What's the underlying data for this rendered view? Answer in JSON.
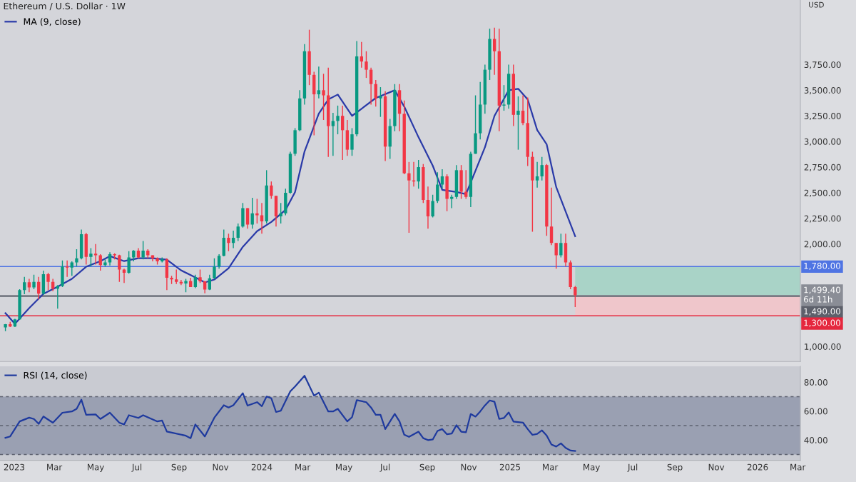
{
  "chart_data": [
    {
      "type": "candlestick",
      "title": "Ethereum / U.S. Dollar · 1W",
      "annotations": [
        "USD"
      ],
      "legend": "top left",
      "tick_labels": "y",
      "x": [
        "2022-12-19",
        "2022-12-26",
        "2023-01-02",
        "2023-01-09",
        "2023-01-16",
        "2023-01-23",
        "2023-01-30",
        "2023-02-06",
        "2023-02-13",
        "2023-02-20",
        "2023-02-27",
        "2023-03-06",
        "2023-03-13",
        "2023-03-20",
        "2023-03-27",
        "2023-04-03",
        "2023-04-10",
        "2023-04-17",
        "2023-04-24",
        "2023-05-01",
        "2023-05-08",
        "2023-05-15",
        "2023-05-22",
        "2023-05-29",
        "2023-06-05",
        "2023-06-12",
        "2023-06-19",
        "2023-06-26",
        "2023-07-03",
        "2023-07-10",
        "2023-07-17",
        "2023-07-24",
        "2023-07-31",
        "2023-08-07",
        "2023-08-14",
        "2023-08-21",
        "2023-08-28",
        "2023-09-04",
        "2023-09-11",
        "2023-09-18",
        "2023-09-25",
        "2023-10-02",
        "2023-10-09",
        "2023-10-16",
        "2023-10-23",
        "2023-10-30",
        "2023-11-06",
        "2023-11-13",
        "2023-11-20",
        "2023-11-27",
        "2023-12-04",
        "2023-12-11",
        "2023-12-18",
        "2023-12-25",
        "2024-01-01",
        "2024-01-08",
        "2024-01-15",
        "2024-01-22",
        "2024-01-29",
        "2024-02-05",
        "2024-02-12",
        "2024-02-19",
        "2024-02-26",
        "2024-03-04",
        "2024-03-11",
        "2024-03-18",
        "2024-03-25",
        "2024-04-01",
        "2024-04-08",
        "2024-04-15",
        "2024-04-22",
        "2024-04-29",
        "2024-05-06",
        "2024-05-13",
        "2024-05-20",
        "2024-05-27",
        "2024-06-03",
        "2024-06-10",
        "2024-06-17",
        "2024-06-24",
        "2024-07-01",
        "2024-07-08",
        "2024-07-15",
        "2024-07-22",
        "2024-07-29",
        "2024-08-05",
        "2024-08-12",
        "2024-08-19",
        "2024-08-26",
        "2024-09-02",
        "2024-09-09",
        "2024-09-16",
        "2024-09-23",
        "2024-09-30",
        "2024-10-07",
        "2024-10-14",
        "2024-10-21",
        "2024-10-28",
        "2024-11-04",
        "2024-11-11",
        "2024-11-18",
        "2024-11-25",
        "2024-12-02",
        "2024-12-09",
        "2024-12-16",
        "2024-12-23",
        "2024-12-30",
        "2025-01-06",
        "2025-01-13",
        "2025-01-20",
        "2025-01-27",
        "2025-02-03",
        "2025-02-10",
        "2025-02-17",
        "2025-02-24",
        "2025-03-03",
        "2025-03-10",
        "2025-03-17",
        "2025-03-24",
        "2025-03-31",
        "2025-04-07"
      ],
      "ohlc": [
        [
          1187,
          1220,
          1150,
          1218
        ],
        [
          1218,
          1240,
          1190,
          1196
        ],
        [
          1196,
          1270,
          1190,
          1265
        ],
        [
          1265,
          1560,
          1260,
          1550
        ],
        [
          1550,
          1680,
          1510,
          1627
        ],
        [
          1627,
          1660,
          1530,
          1577
        ],
        [
          1577,
          1700,
          1560,
          1630
        ],
        [
          1630,
          1680,
          1460,
          1515
        ],
        [
          1515,
          1740,
          1505,
          1705
        ],
        [
          1705,
          1720,
          1550,
          1630
        ],
        [
          1630,
          1660,
          1540,
          1565
        ],
        [
          1565,
          1600,
          1370,
          1590
        ],
        [
          1590,
          1840,
          1580,
          1780
        ],
        [
          1780,
          1840,
          1680,
          1770
        ],
        [
          1770,
          1830,
          1690,
          1820
        ],
        [
          1820,
          1950,
          1780,
          1860
        ],
        [
          1860,
          2140,
          1850,
          2095
        ],
        [
          2095,
          2110,
          1800,
          1875
        ],
        [
          1875,
          1960,
          1780,
          1905
        ],
        [
          1905,
          2000,
          1800,
          1890
        ],
        [
          1890,
          1900,
          1740,
          1795
        ],
        [
          1795,
          1850,
          1780,
          1820
        ],
        [
          1820,
          1920,
          1790,
          1900
        ],
        [
          1900,
          1910,
          1850,
          1890
        ],
        [
          1890,
          1895,
          1630,
          1750
        ],
        [
          1750,
          1760,
          1620,
          1720
        ],
        [
          1720,
          1930,
          1710,
          1870
        ],
        [
          1870,
          1940,
          1830,
          1935
        ],
        [
          1935,
          1960,
          1860,
          1870
        ],
        [
          1870,
          2030,
          1850,
          1935
        ],
        [
          1935,
          1950,
          1860,
          1890
        ],
        [
          1890,
          1890,
          1830,
          1860
        ],
        [
          1860,
          1870,
          1800,
          1830
        ],
        [
          1830,
          1870,
          1820,
          1850
        ],
        [
          1850,
          1860,
          1550,
          1670
        ],
        [
          1670,
          1690,
          1610,
          1655
        ],
        [
          1655,
          1750,
          1610,
          1630
        ],
        [
          1630,
          1650,
          1600,
          1615
        ],
        [
          1615,
          1660,
          1530,
          1640
        ],
        [
          1640,
          1670,
          1580,
          1580
        ],
        [
          1580,
          1700,
          1570,
          1675
        ],
        [
          1675,
          1750,
          1620,
          1635
        ],
        [
          1635,
          1640,
          1520,
          1555
        ],
        [
          1555,
          1700,
          1550,
          1665
        ],
        [
          1665,
          1860,
          1660,
          1780
        ],
        [
          1780,
          1900,
          1760,
          1885
        ],
        [
          1885,
          2140,
          1880,
          2060
        ],
        [
          2060,
          2100,
          1930,
          2010
        ],
        [
          2010,
          2130,
          1960,
          2060
        ],
        [
          2060,
          2200,
          2030,
          2170
        ],
        [
          2170,
          2400,
          2160,
          2350
        ],
        [
          2350,
          2350,
          2150,
          2190
        ],
        [
          2190,
          2450,
          2150,
          2300
        ],
        [
          2300,
          2440,
          2200,
          2280
        ],
        [
          2280,
          2400,
          2100,
          2220
        ],
        [
          2220,
          2720,
          2200,
          2570
        ],
        [
          2570,
          2610,
          2440,
          2470
        ],
        [
          2470,
          2470,
          2170,
          2270
        ],
        [
          2270,
          2400,
          2200,
          2300
        ],
        [
          2300,
          2540,
          2280,
          2500
        ],
        [
          2500,
          2900,
          2490,
          2880
        ],
        [
          2880,
          3130,
          2860,
          3110
        ],
        [
          3110,
          3500,
          3100,
          3420
        ],
        [
          3420,
          3950,
          3360,
          3880
        ],
        [
          3880,
          4090,
          3550,
          3650
        ],
        [
          3650,
          3680,
          3060,
          3460
        ],
        [
          3460,
          3730,
          3420,
          3500
        ],
        [
          3500,
          3660,
          3210,
          3450
        ],
        [
          3450,
          3720,
          2850,
          3150
        ],
        [
          3150,
          3280,
          2860,
          3200
        ],
        [
          3200,
          3350,
          3070,
          3250
        ],
        [
          3250,
          3350,
          2820,
          3110
        ],
        [
          3110,
          3210,
          2860,
          2920
        ],
        [
          2920,
          3130,
          2860,
          3070
        ],
        [
          3070,
          3980,
          3050,
          3830
        ],
        [
          3830,
          3970,
          3720,
          3780
        ],
        [
          3780,
          3880,
          3620,
          3700
        ],
        [
          3700,
          3720,
          3360,
          3560
        ],
        [
          3560,
          3600,
          3340,
          3420
        ],
        [
          3420,
          3530,
          3240,
          3440
        ],
        [
          3440,
          3490,
          2810,
          2950
        ],
        [
          2950,
          3220,
          2830,
          3150
        ],
        [
          3150,
          3560,
          3100,
          3500
        ],
        [
          3500,
          3560,
          3100,
          3270
        ],
        [
          3270,
          3400,
          2680,
          2690
        ],
        [
          2690,
          2800,
          2110,
          2620
        ],
        [
          2620,
          2800,
          2560,
          2610
        ],
        [
          2610,
          2820,
          2540,
          2750
        ],
        [
          2750,
          2780,
          2400,
          2430
        ],
        [
          2430,
          2560,
          2150,
          2270
        ],
        [
          2270,
          2480,
          2260,
          2420
        ],
        [
          2420,
          2700,
          2400,
          2580
        ],
        [
          2580,
          2730,
          2540,
          2660
        ],
        [
          2660,
          2680,
          2320,
          2440
        ],
        [
          2440,
          2480,
          2350,
          2460
        ],
        [
          2460,
          2770,
          2440,
          2720
        ],
        [
          2720,
          2770,
          2440,
          2510
        ],
        [
          2510,
          2720,
          2440,
          2460
        ],
        [
          2460,
          2900,
          2360,
          2880
        ],
        [
          2880,
          3450,
          2880,
          3080
        ],
        [
          3080,
          3580,
          3020,
          3360
        ],
        [
          3360,
          3750,
          3270,
          3700
        ],
        [
          3700,
          4100,
          3600,
          4000
        ],
        [
          4000,
          4110,
          3650,
          3880
        ],
        [
          3880,
          4100,
          3100,
          3350
        ],
        [
          3350,
          3550,
          3300,
          3360
        ],
        [
          3360,
          3750,
          3320,
          3660
        ],
        [
          3660,
          3750,
          3150,
          3260
        ],
        [
          3260,
          3440,
          2920,
          3300
        ],
        [
          3300,
          3450,
          3160,
          3180
        ],
        [
          3180,
          3430,
          2760,
          2850
        ],
        [
          2850,
          2900,
          2120,
          2620
        ],
        [
          2620,
          2800,
          2550,
          2660
        ],
        [
          2660,
          2850,
          2620,
          2770
        ],
        [
          2770,
          2780,
          2080,
          2170
        ],
        [
          2170,
          2550,
          1990,
          2010
        ],
        [
          2010,
          2010,
          1760,
          1890
        ],
        [
          1890,
          2100,
          1870,
          2010
        ],
        [
          2010,
          2100,
          1780,
          1820
        ],
        [
          1820,
          1840,
          1560,
          1580
        ],
        [
          1580,
          1590,
          1385,
          1499.4
        ]
      ],
      "series": [
        {
          "type": "line",
          "name": "MA (9, close)",
          "color": "#2a3aa8",
          "x": [
            "2022-12-19",
            "2023-01-02",
            "2023-01-23",
            "2023-02-13",
            "2023-03-06",
            "2023-03-27",
            "2023-04-17",
            "2023-05-08",
            "2023-05-22",
            "2023-06-12",
            "2023-07-03",
            "2023-07-24",
            "2023-08-14",
            "2023-09-04",
            "2023-09-25",
            "2023-10-09",
            "2023-10-23",
            "2023-11-13",
            "2023-12-04",
            "2023-12-25",
            "2024-01-15",
            "2024-02-05",
            "2024-02-19",
            "2024-03-04",
            "2024-03-25",
            "2024-04-08",
            "2024-04-22",
            "2024-05-13",
            "2024-05-27",
            "2024-06-17",
            "2024-07-15",
            "2024-07-29",
            "2024-08-19",
            "2024-09-09",
            "2024-09-23",
            "2024-10-14",
            "2024-10-28",
            "2024-11-11",
            "2024-11-25",
            "2024-12-09",
            "2024-12-30",
            "2025-01-13",
            "2025-01-27",
            "2025-02-10",
            "2025-02-24",
            "2025-03-10",
            "2025-04-07"
          ],
          "values": [
            1326,
            1222,
            1375,
            1514,
            1583,
            1660,
            1778,
            1833,
            1882,
            1833,
            1861,
            1861,
            1847,
            1743,
            1674,
            1625,
            1653,
            1764,
            1972,
            2125,
            2215,
            2333,
            2507,
            2903,
            3271,
            3410,
            3458,
            3250,
            3319,
            3424,
            3500,
            3340,
            3042,
            2764,
            2528,
            2507,
            2486,
            2715,
            2944,
            3250,
            3500,
            3514,
            3410,
            3111,
            2972,
            2556,
            2076
          ]
        }
      ],
      "xlim": [
        "2022-12-11",
        "2026-03-05"
      ],
      "ylim": [
        854,
        4380
      ],
      "yticks": [
        {
          "value": 1000,
          "label": "1,000.00"
        },
        {
          "value": 2000,
          "label": "2,000.00"
        },
        {
          "value": 2250,
          "label": "2,250.00"
        },
        {
          "value": 2500,
          "label": "2,500.00"
        },
        {
          "value": 2750,
          "label": "2,750.00"
        },
        {
          "value": 3000,
          "label": "3,000.00"
        },
        {
          "value": 3250,
          "label": "3,250.00"
        },
        {
          "value": 3500,
          "label": "3,500.00"
        },
        {
          "value": 3750,
          "label": "3,750.00"
        }
      ],
      "bands": [
        {
          "axis": "y",
          "from": 1490,
          "to": 1780,
          "color": "#a9d3c7"
        },
        {
          "axis": "y",
          "from": 1300,
          "to": 1490,
          "color": "#efc6cb"
        }
      ],
      "ref_lines": [
        {
          "axis": "y",
          "value": 1780,
          "label": "1,780.00",
          "color": "#4f74e3"
        },
        {
          "axis": "y",
          "value": 1499.4,
          "label": "1,499.40\n6d 11h",
          "color": "#8a8d96"
        },
        {
          "axis": "y",
          "value": 1490,
          "label": "1,490.00",
          "color": "#5d606b"
        },
        {
          "axis": "y",
          "value": 1300,
          "label": "1,300.00",
          "color": "#e5283e"
        }
      ]
    },
    {
      "type": "line",
      "legend": "top left",
      "series": [
        {
          "name": "RSI (14, close)",
          "color": "#1f3a9e",
          "x": [
            "2022-12-19",
            "2022-12-26",
            "2023-01-09",
            "2023-01-23",
            "2023-01-30",
            "2023-02-06",
            "2023-02-13",
            "2023-02-27",
            "2023-03-13",
            "2023-03-27",
            "2023-04-03",
            "2023-04-10",
            "2023-04-17",
            "2023-05-01",
            "2023-05-08",
            "2023-05-22",
            "2023-06-05",
            "2023-06-12",
            "2023-06-19",
            "2023-07-03",
            "2023-07-10",
            "2023-07-31",
            "2023-08-07",
            "2023-08-14",
            "2023-09-11",
            "2023-09-18",
            "2023-09-25",
            "2023-10-09",
            "2023-10-23",
            "2023-11-06",
            "2023-11-13",
            "2023-11-20",
            "2023-12-04",
            "2023-12-11",
            "2023-12-25",
            "2024-01-01",
            "2024-01-08",
            "2024-01-15",
            "2024-01-22",
            "2024-01-29",
            "2024-02-12",
            "2024-02-19",
            "2024-03-04",
            "2024-03-18",
            "2024-03-25",
            "2024-04-08",
            "2024-04-15",
            "2024-04-22",
            "2024-05-06",
            "2024-05-13",
            "2024-05-20",
            "2024-06-03",
            "2024-06-10",
            "2024-06-17",
            "2024-06-24",
            "2024-07-01",
            "2024-07-15",
            "2024-07-22",
            "2024-07-29",
            "2024-08-05",
            "2024-08-19",
            "2024-08-26",
            "2024-09-02",
            "2024-09-09",
            "2024-09-16",
            "2024-09-23",
            "2024-09-30",
            "2024-10-07",
            "2024-10-14",
            "2024-10-21",
            "2024-10-28",
            "2024-11-04",
            "2024-11-11",
            "2024-11-18",
            "2024-11-25",
            "2024-12-02",
            "2024-12-09",
            "2024-12-16",
            "2024-12-23",
            "2024-12-30",
            "2025-01-06",
            "2025-01-20",
            "2025-01-27",
            "2025-02-03",
            "2025-02-10",
            "2025-02-17",
            "2025-02-24",
            "2025-03-03",
            "2025-03-10",
            "2025-03-17",
            "2025-03-24",
            "2025-03-31",
            "2025-04-07"
          ],
          "values": [
            41.6,
            42.5,
            52.9,
            55.5,
            54.6,
            51.2,
            56.3,
            52.0,
            58.9,
            59.8,
            61.6,
            67.9,
            57.5,
            57.7,
            54.6,
            58.9,
            52.0,
            50.8,
            57.2,
            55.3,
            57.2,
            52.9,
            53.5,
            45.9,
            43.0,
            41.3,
            50.8,
            42.5,
            55.5,
            64.1,
            62.5,
            64.1,
            72.4,
            63.8,
            66.2,
            63.4,
            70.1,
            68.9,
            59.4,
            60.3,
            73.7,
            77.1,
            84.5,
            70.7,
            72.8,
            59.8,
            59.8,
            61.6,
            52.9,
            55.8,
            67.6,
            66.2,
            62.5,
            57.5,
            57.5,
            47.6,
            58.1,
            52.9,
            43.7,
            42.2,
            45.8,
            41.3,
            40.0,
            40.4,
            46.3,
            47.6,
            44.0,
            44.5,
            50.3,
            45.8,
            45.4,
            58.0,
            56.2,
            59.8,
            64.0,
            67.4,
            66.5,
            54.6,
            55.3,
            59.1,
            52.8,
            52.1,
            47.6,
            43.6,
            44.3,
            46.7,
            43.1,
            36.9,
            35.5,
            37.7,
            34.6,
            32.8,
            32.5
          ]
        }
      ],
      "xlim": [
        "2022-12-11",
        "2026-03-05"
      ],
      "xticks": [
        {
          "value": "2023-01-01",
          "label": "2023"
        },
        {
          "value": "2023-03-01",
          "label": "Mar"
        },
        {
          "value": "2023-05-01",
          "label": "May"
        },
        {
          "value": "2023-07-01",
          "label": "Jul"
        },
        {
          "value": "2023-09-01",
          "label": "Sep"
        },
        {
          "value": "2023-11-01",
          "label": "Nov"
        },
        {
          "value": "2024-01-01",
          "label": "2024"
        },
        {
          "value": "2024-03-01",
          "label": "Mar"
        },
        {
          "value": "2024-05-01",
          "label": "May"
        },
        {
          "value": "2024-07-01",
          "label": "Jul"
        },
        {
          "value": "2024-09-01",
          "label": "Sep"
        },
        {
          "value": "2024-11-01",
          "label": "Nov"
        },
        {
          "value": "2025-01-01",
          "label": "2025"
        },
        {
          "value": "2025-03-01",
          "label": "Mar"
        },
        {
          "value": "2025-05-01",
          "label": "May"
        },
        {
          "value": "2025-07-01",
          "label": "Jul"
        },
        {
          "value": "2025-09-01",
          "label": "Sep"
        },
        {
          "value": "2025-11-01",
          "label": "Nov"
        },
        {
          "value": "2026-01-01",
          "label": "2026"
        },
        {
          "value": "2026-03-01",
          "label": "Mar"
        }
      ],
      "ylim": [
        26,
        91
      ],
      "yticks": [
        {
          "value": 40,
          "label": "40.00"
        },
        {
          "value": 60,
          "label": "60.00"
        },
        {
          "value": 80,
          "label": "80.00"
        }
      ],
      "bands": [
        {
          "axis": "y",
          "from": 30,
          "to": 70,
          "color": "#9aa0b2"
        }
      ],
      "ref_lines": [
        {
          "axis": "y",
          "value": 70,
          "line_style": "dashed",
          "color": "#5e6270"
        },
        {
          "axis": "y",
          "value": 50,
          "line_style": "dashed",
          "color": "#5e6270"
        },
        {
          "axis": "y",
          "value": 30,
          "line_style": "dashed",
          "color": "#5e6270"
        }
      ]
    }
  ]
}
